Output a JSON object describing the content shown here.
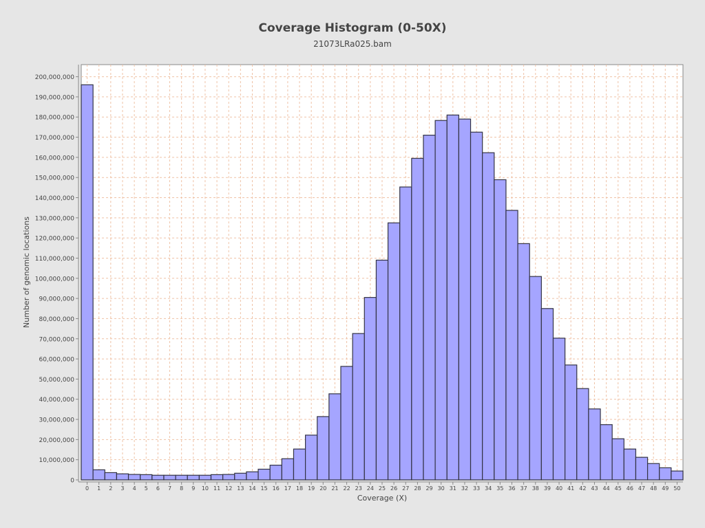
{
  "chart_data": {
    "type": "bar",
    "title": "Coverage Histogram (0-50X)",
    "subtitle": "21073LRa025.bam",
    "xlabel": "Coverage (X)",
    "ylabel": "Number of genomic locations",
    "categories": [
      "0",
      "1",
      "2",
      "3",
      "4",
      "5",
      "6",
      "7",
      "8",
      "9",
      "10",
      "11",
      "12",
      "13",
      "14",
      "15",
      "16",
      "17",
      "18",
      "19",
      "20",
      "21",
      "22",
      "23",
      "24",
      "25",
      "26",
      "27",
      "28",
      "29",
      "30",
      "31",
      "32",
      "33",
      "34",
      "35",
      "36",
      "37",
      "38",
      "39",
      "40",
      "41",
      "42",
      "43",
      "44",
      "45",
      "46",
      "47",
      "48",
      "49",
      "50"
    ],
    "values": [
      196000000,
      5000000,
      3600000,
      3000000,
      2700000,
      2600000,
      2300000,
      2300000,
      2300000,
      2300000,
      2300000,
      2600000,
      2700000,
      3300000,
      4000000,
      5300000,
      7300000,
      10500000,
      15300000,
      22200000,
      31400000,
      42700000,
      56300000,
      72600000,
      90500000,
      109000000,
      127500000,
      145300000,
      159500000,
      171000000,
      178300000,
      181000000,
      179000000,
      172500000,
      162300000,
      148900000,
      133700000,
      117200000,
      100900000,
      85000000,
      70300000,
      57000000,
      45300000,
      35200000,
      27400000,
      20400000,
      15300000,
      11200000,
      8100000,
      6000000,
      4400000
    ],
    "ylim": [
      0,
      206000000
    ],
    "yticks": [
      "0",
      "10,000,000",
      "20,000,000",
      "30,000,000",
      "40,000,000",
      "50,000,000",
      "60,000,000",
      "70,000,000",
      "80,000,000",
      "90,000,000",
      "100,000,000",
      "110,000,000",
      "120,000,000",
      "130,000,000",
      "140,000,000",
      "150,000,000",
      "160,000,000",
      "170,000,000",
      "180,000,000",
      "190,000,000",
      "200,000,000"
    ],
    "grid": true,
    "colors": {
      "bar_fill": "#a5a5ff",
      "bar_stroke": "#333344",
      "grid": "#efc2a6",
      "plot_bg": "#ffffff",
      "page_bg": "#e6e6e6"
    }
  }
}
